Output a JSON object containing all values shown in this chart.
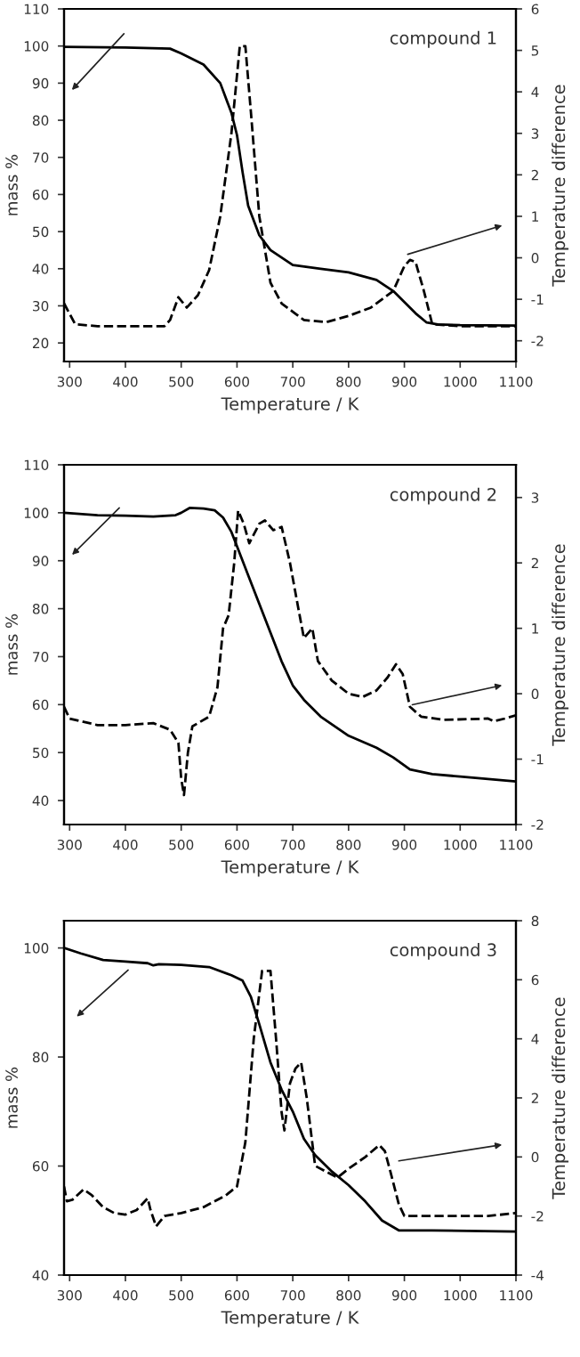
{
  "chart_data": [
    {
      "type": "line",
      "xlabel": "Temperature / K",
      "ylabel": "mass %",
      "y2label": "Temperature difference",
      "annotations": [
        "compound 1"
      ],
      "xlim": [
        290,
        1100
      ],
      "xticks": [
        300,
        400,
        500,
        600,
        700,
        800,
        900,
        1000,
        1100
      ],
      "ylim": [
        15,
        110
      ],
      "yticks": [
        20,
        30,
        40,
        50,
        60,
        70,
        80,
        90,
        100,
        110
      ],
      "y2lim": [
        -2.5,
        6
      ],
      "y2ticks": [
        -2,
        -1,
        0,
        1,
        2,
        3,
        4,
        5,
        6
      ],
      "grid": false,
      "legend": false,
      "series": [
        {
          "color": "#000000",
          "line_style": "solid",
          "x": [
            290,
            400,
            480,
            500,
            540,
            570,
            590,
            600,
            610,
            620,
            640,
            660,
            700,
            750,
            800,
            850,
            880,
            900,
            920,
            940,
            960,
            1000,
            1100
          ],
          "values": [
            99.8,
            99.6,
            99.3,
            98,
            95,
            90,
            82,
            76,
            66,
            57,
            49,
            45,
            41,
            40,
            39,
            37,
            34,
            31,
            28,
            25.5,
            25,
            24.8,
            24.7
          ]
        },
        {
          "color": "#000000",
          "line_style": "dashed",
          "axis": "y2",
          "x": [
            290,
            310,
            350,
            470,
            480,
            495,
            510,
            530,
            550,
            570,
            590,
            605,
            615,
            625,
            640,
            660,
            680,
            700,
            720,
            760,
            800,
            840,
            880,
            900,
            910,
            920,
            935,
            950,
            1000,
            1100
          ],
          "values": [
            -1.1,
            -1.6,
            -1.65,
            -1.65,
            -1.5,
            -0.95,
            -1.2,
            -0.9,
            -0.3,
            1.0,
            3.0,
            5.1,
            5.1,
            3.5,
            1.0,
            -0.6,
            -1.1,
            -1.3,
            -1.5,
            -1.55,
            -1.4,
            -1.2,
            -0.8,
            -0.2,
            -0.05,
            -0.1,
            -0.8,
            -1.6,
            -1.65,
            -1.65
          ]
        }
      ]
    },
    {
      "type": "line",
      "xlabel": "Temperature / K",
      "ylabel": "mass %",
      "y2label": "Temperature difference",
      "annotations": [
        "compound 2"
      ],
      "xlim": [
        290,
        1100
      ],
      "xticks": [
        300,
        400,
        500,
        600,
        700,
        800,
        900,
        1000,
        1100
      ],
      "ylim": [
        35,
        110
      ],
      "yticks": [
        40,
        50,
        60,
        70,
        80,
        90,
        100,
        110
      ],
      "y2lim": [
        -2,
        3.5
      ],
      "y2ticks": [
        -2,
        -1,
        0,
        1,
        2,
        3
      ],
      "grid": false,
      "legend": false,
      "series": [
        {
          "color": "#000000",
          "line_style": "solid",
          "x": [
            290,
            350,
            400,
            450,
            490,
            500,
            515,
            540,
            560,
            575,
            590,
            600,
            620,
            640,
            660,
            680,
            700,
            720,
            750,
            800,
            850,
            880,
            910,
            950,
            1000,
            1100
          ],
          "values": [
            100,
            99.5,
            99.4,
            99.2,
            99.5,
            100,
            101,
            100.9,
            100.5,
            99,
            96,
            93,
            87,
            81,
            75,
            69,
            64,
            61,
            57.5,
            53.5,
            51,
            49,
            46.5,
            45.5,
            45,
            44
          ]
        },
        {
          "color": "#000000",
          "line_style": "dashed",
          "axis": "y2",
          "x": [
            290,
            300,
            350,
            400,
            450,
            480,
            495,
            500,
            505,
            512,
            520,
            550,
            565,
            575,
            585,
            595,
            602,
            612,
            622,
            640,
            650,
            665,
            680,
            695,
            710,
            720,
            735,
            745,
            770,
            800,
            825,
            850,
            870,
            885,
            897,
            910,
            930,
            970,
            1050,
            1060,
            1080,
            1100
          ],
          "values": [
            -0.2,
            -0.38,
            -0.48,
            -0.48,
            -0.45,
            -0.55,
            -0.75,
            -1.3,
            -1.55,
            -0.9,
            -0.5,
            -0.35,
            0.1,
            1.0,
            1.2,
            2.0,
            2.8,
            2.6,
            2.3,
            2.6,
            2.65,
            2.5,
            2.55,
            2.0,
            1.3,
            0.85,
            1.0,
            0.5,
            0.2,
            0.0,
            -0.05,
            0.05,
            0.25,
            0.45,
            0.3,
            -0.2,
            -0.35,
            -0.4,
            -0.38,
            -0.42,
            -0.38,
            -0.33
          ]
        }
      ]
    },
    {
      "type": "line",
      "xlabel": "Temperature / K",
      "ylabel": "mass %",
      "y2label": "Temperature difference",
      "annotations": [
        "compound 3"
      ],
      "xlim": [
        290,
        1100
      ],
      "xticks": [
        300,
        400,
        500,
        600,
        700,
        800,
        900,
        1000,
        1100
      ],
      "ylim": [
        40,
        105
      ],
      "yticks": [
        40,
        60,
        80,
        100
      ],
      "y2lim": [
        -4,
        8
      ],
      "y2ticks": [
        -4,
        -2,
        0,
        2,
        4,
        6,
        8
      ],
      "grid": false,
      "legend": false,
      "series": [
        {
          "color": "#000000",
          "line_style": "solid",
          "x": [
            290,
            320,
            360,
            400,
            440,
            450,
            460,
            500,
            550,
            590,
            610,
            625,
            640,
            660,
            680,
            700,
            720,
            740,
            770,
            800,
            830,
            860,
            890,
            950,
            1100
          ],
          "values": [
            100,
            99,
            97.8,
            97.5,
            97.2,
            96.8,
            97,
            96.9,
            96.5,
            95,
            94,
            91,
            86,
            79,
            74,
            70,
            65,
            62,
            59,
            56.5,
            53.5,
            50,
            48.2,
            48.2,
            48
          ]
        },
        {
          "color": "#000000",
          "line_style": "dashed",
          "axis": "y2",
          "x": [
            290,
            295,
            305,
            325,
            340,
            360,
            380,
            400,
            420,
            440,
            445,
            455,
            470,
            500,
            540,
            580,
            600,
            615,
            630,
            645,
            660,
            670,
            680,
            685,
            695,
            705,
            715,
            725,
            740,
            760,
            780,
            800,
            830,
            855,
            865,
            875,
            890,
            900,
            950,
            1050,
            1100
          ],
          "values": [
            -1.0,
            -1.5,
            -1.45,
            -1.1,
            -1.3,
            -1.7,
            -1.9,
            -1.95,
            -1.8,
            -1.4,
            -1.8,
            -2.35,
            -2.0,
            -1.9,
            -1.7,
            -1.3,
            -1.0,
            0.5,
            4.0,
            6.3,
            6.3,
            4.0,
            1.5,
            0.9,
            2.5,
            3.0,
            3.2,
            2.0,
            -0.3,
            -0.5,
            -0.7,
            -0.4,
            0,
            0.4,
            0.2,
            -0.5,
            -1.6,
            -2.0,
            -2.0,
            -2.0,
            -1.9
          ]
        }
      ]
    }
  ]
}
